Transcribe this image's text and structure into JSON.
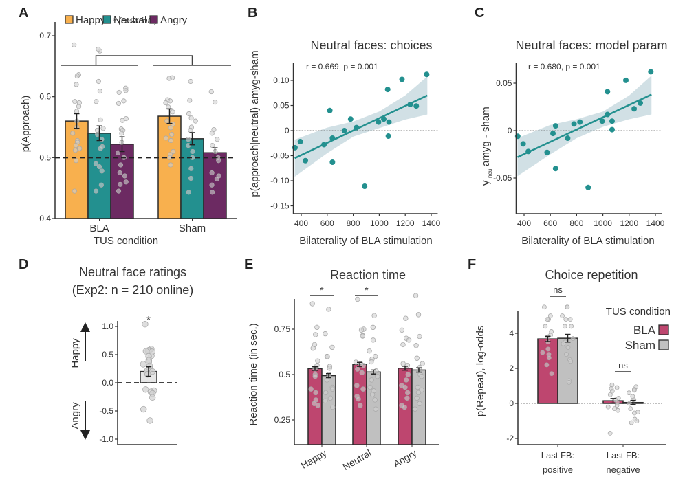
{
  "colors": {
    "happy": "#F8B04E",
    "neutral": "#23908F",
    "angry": "#6C2A62",
    "bla": "#BE466F",
    "sham": "#C0C0C0",
    "scatter": "#23908F",
    "ci_band": "#C9DBE0",
    "point_gray": "#BDBDBD"
  },
  "chart_data": [
    {
      "panel": "A",
      "type": "bar",
      "title": "",
      "xlabel": "TUS condition",
      "ylabel": "p(Approach)",
      "ylim": [
        0.4,
        0.72
      ],
      "yticks": [
        "0.4",
        "0.5",
        "0.6",
        "0.7"
      ],
      "categories": [
        "BLA",
        "Sham"
      ],
      "legend": [
        "Happy",
        "Neutral",
        "Angry"
      ],
      "legend_position": "top",
      "series": [
        {
          "name": "Happy",
          "values": [
            0.56,
            0.568
          ],
          "sem": [
            0.012,
            0.012
          ]
        },
        {
          "name": "Neutral",
          "values": [
            0.54,
            0.531
          ],
          "sem": [
            0.012,
            0.01
          ]
        },
        {
          "name": "Angry",
          "values": [
            0.522,
            0.508
          ],
          "sem": [
            0.012,
            0.008
          ]
        }
      ],
      "reference_line": 0.5,
      "annotation": "* (covariate)",
      "points": {
        "BLA": {
          "Happy": [
            0.685,
            0.636,
            0.634,
            0.62,
            0.592,
            0.59,
            0.584,
            0.576,
            0.56,
            0.55,
            0.54,
            0.528,
            0.525,
            0.52,
            0.515,
            0.512,
            0.495,
            0.445
          ],
          "Neutral": [
            0.675,
            0.678,
            0.625,
            0.609,
            0.592,
            0.562,
            0.548,
            0.545,
            0.538,
            0.53,
            0.518,
            0.515,
            0.49,
            0.485,
            0.478,
            0.455,
            0.445
          ],
          "Angry": [
            0.614,
            0.61,
            0.607,
            0.593,
            0.589,
            0.564,
            0.561,
            0.547,
            0.545,
            0.54,
            0.525,
            0.508,
            0.5,
            0.488,
            0.475,
            0.47,
            0.46,
            0.456,
            0.445
          ]
        },
        "Sham": {
          "Happy": [
            0.631,
            0.63,
            0.595,
            0.593,
            0.59,
            0.583,
            0.575,
            0.56,
            0.555,
            0.549,
            0.538,
            0.532,
            0.528,
            0.51,
            0.505,
            0.5,
            0.488
          ],
          "Neutral": [
            0.625,
            0.594,
            0.572,
            0.565,
            0.56,
            0.55,
            0.545,
            0.53,
            0.52,
            0.51,
            0.5,
            0.482,
            0.466,
            0.443
          ],
          "Angry": [
            0.608,
            0.591,
            0.546,
            0.54,
            0.53,
            0.52,
            0.51,
            0.5,
            0.495,
            0.475,
            0.47,
            0.465,
            0.455,
            0.443
          ]
        }
      }
    },
    {
      "panel": "B",
      "type": "scatter",
      "title": "Neutral faces: choices",
      "annotation": "r = 0.669, p = 0.001",
      "xlabel": "Bilaterality of BLA stimulation",
      "ylabel": "p(approach|neutral) amyg-sham",
      "xlim": [
        350,
        1450
      ],
      "ylim": [
        -0.165,
        0.125
      ],
      "xticks": [
        400,
        600,
        800,
        1000,
        1200,
        1400
      ],
      "yticks": [
        -0.15,
        -0.1,
        -0.05,
        0,
        0.05,
        0.1
      ],
      "ytick_labels": [
        "-0.15",
        "-0.10",
        "-0.05",
        "0",
        "0.05",
        "0.10"
      ],
      "points": [
        [
          352,
          -0.034
        ],
        [
          393,
          -0.022
        ],
        [
          432,
          -0.06
        ],
        [
          575,
          -0.028
        ],
        [
          620,
          0.04
        ],
        [
          640,
          -0.015
        ],
        [
          640,
          -0.063
        ],
        [
          732,
          0.0
        ],
        [
          780,
          0.023
        ],
        [
          825,
          0.006
        ],
        [
          888,
          -0.111
        ],
        [
          995,
          0.017
        ],
        [
          1035,
          0.023
        ],
        [
          1065,
          0.082
        ],
        [
          1075,
          0.017
        ],
        [
          1070,
          -0.011
        ],
        [
          1175,
          0.102
        ],
        [
          1238,
          0.052
        ],
        [
          1285,
          0.049
        ],
        [
          1365,
          0.112
        ]
      ],
      "fit": {
        "x": [
          350,
          1370
        ],
        "y": [
          -0.055,
          0.07
        ]
      },
      "ci_band": {
        "x": [
          350,
          600,
          800,
          1000,
          1200,
          1370
        ],
        "lower": [
          -0.092,
          -0.045,
          -0.012,
          0.005,
          0.022,
          0.032
        ],
        "upper": [
          -0.018,
          0.006,
          0.018,
          0.038,
          0.07,
          0.108
        ]
      },
      "reference_line": 0
    },
    {
      "panel": "C",
      "type": "scatter",
      "title": "Neutral faces: model param",
      "annotation": "r = 0.680, p = 0.001",
      "xlabel": "Bilaterality of BLA stimulation",
      "ylabel": "γ neu, amyg - sham",
      "ylabel_parts": {
        "symbol": "γ",
        "subscript": "neu,",
        "rest": " amyg - sham"
      },
      "xlim": [
        350,
        1450
      ],
      "ylim": [
        -0.085,
        0.068
      ],
      "xticks": [
        400,
        600,
        800,
        1000,
        1200,
        1400
      ],
      "yticks": [
        -0.05,
        0,
        0.05
      ],
      "ytick_labels": [
        "-0.05",
        "0",
        "0.05"
      ],
      "points": [
        [
          352,
          -0.006
        ],
        [
          393,
          -0.014
        ],
        [
          432,
          -0.022
        ],
        [
          575,
          -0.023
        ],
        [
          620,
          -0.003
        ],
        [
          640,
          0.005
        ],
        [
          640,
          -0.04
        ],
        [
          732,
          -0.008
        ],
        [
          780,
          0.007
        ],
        [
          825,
          0.009
        ],
        [
          888,
          -0.06
        ],
        [
          995,
          0.01
        ],
        [
          1035,
          0.017
        ],
        [
          1035,
          0.041
        ],
        [
          1070,
          0.01
        ],
        [
          1070,
          0.001
        ],
        [
          1175,
          0.053
        ],
        [
          1238,
          0.023
        ],
        [
          1285,
          0.029
        ],
        [
          1365,
          0.062
        ]
      ],
      "fit": {
        "x": [
          350,
          1370
        ],
        "y": [
          -0.028,
          0.038
        ]
      },
      "ci_band": {
        "x": [
          350,
          600,
          800,
          1000,
          1200,
          1370
        ],
        "lower": [
          -0.048,
          -0.025,
          -0.008,
          0.004,
          0.012,
          0.017
        ],
        "upper": [
          -0.008,
          0.006,
          0.012,
          0.02,
          0.037,
          0.058
        ]
      },
      "reference_line": 0
    },
    {
      "panel": "D",
      "type": "bar",
      "title": "Neutral face ratings",
      "subtitle": "(Exp2: n = 210 online)",
      "ylabel_top": "Happy",
      "ylabel_bottom": "Angry",
      "ylim": [
        -1.08,
        1.1
      ],
      "yticks": [
        -1.0,
        -0.5,
        0.0,
        0.5,
        1.0
      ],
      "ytick_labels": [
        "-1.0",
        "-0.5",
        "0.0",
        "0.5",
        "1.0"
      ],
      "values": [
        0.2
      ],
      "sem": [
        0.085
      ],
      "significance": "*",
      "reference_line": 0.0,
      "points": [
        1.04,
        0.6,
        0.58,
        0.57,
        0.56,
        0.55,
        0.48,
        0.47,
        0.4,
        0.37,
        0.33,
        0.3,
        0.25,
        0.22,
        0.2,
        0.18,
        0.15,
        -0.12,
        -0.14,
        -0.16,
        -0.19,
        -0.26,
        -0.47,
        -0.67
      ]
    },
    {
      "panel": "E",
      "type": "bar",
      "title": "Reaction time",
      "ylabel": "Reaction time (in sec.)",
      "ylim": [
        0.11,
        0.93
      ],
      "yticks": [
        0.25,
        0.5,
        0.75
      ],
      "ytick_labels": [
        "0.25",
        "0.5",
        "0.75"
      ],
      "categories": [
        "Happy",
        "Neutral",
        "Angry"
      ],
      "series": [
        {
          "name": "BLA",
          "values": [
            0.533,
            0.556,
            0.535
          ],
          "sem": [
            0.01,
            0.011,
            0.011
          ]
        },
        {
          "name": "Sham",
          "values": [
            0.494,
            0.514,
            0.525
          ],
          "sem": [
            0.011,
            0.011,
            0.012
          ]
        }
      ],
      "significance": [
        "*",
        "*",
        ""
      ],
      "points": {
        "Happy": {
          "BLA": [
            0.89,
            0.76,
            0.72,
            0.665,
            0.645,
            0.575,
            0.55,
            0.53,
            0.5,
            0.49,
            0.42,
            0.4,
            0.36,
            0.34,
            0.33
          ],
          "Sham": [
            0.86,
            0.725,
            0.65,
            0.6,
            0.598,
            0.545,
            0.535,
            0.5,
            0.47,
            0.43,
            0.42,
            0.4,
            0.37,
            0.355,
            0.32
          ]
        },
        "Neutral": {
          "BLA": [
            0.915,
            0.75,
            0.745,
            0.715,
            0.712,
            0.568,
            0.56,
            0.55,
            0.53,
            0.51,
            0.44,
            0.42,
            0.38,
            0.365,
            0.33
          ],
          "Sham": [
            0.825,
            0.76,
            0.69,
            0.63,
            0.6,
            0.585,
            0.57,
            0.52,
            0.49,
            0.47,
            0.43,
            0.41,
            0.39,
            0.36,
            0.31
          ]
        },
        "Angry": {
          "BLA": [
            0.81,
            0.745,
            0.7,
            0.69,
            0.665,
            0.56,
            0.55,
            0.5,
            0.47,
            0.44,
            0.43,
            0.4,
            0.37,
            0.33,
            0.32
          ],
          "Sham": [
            0.935,
            0.83,
            0.71,
            0.66,
            0.59,
            0.56,
            0.54,
            0.5,
            0.49,
            0.43,
            0.415,
            0.4,
            0.37,
            0.34,
            0.31
          ]
        }
      }
    },
    {
      "panel": "F",
      "type": "bar",
      "title": "Choice repetition",
      "ylabel": "p(Repeat), log-odds",
      "ylim": [
        -2.4,
        5.3
      ],
      "yticks": [
        -2,
        0,
        2,
        4
      ],
      "ytick_labels": [
        "-2",
        "0",
        "2",
        "4"
      ],
      "categories": [
        "Last FB:\npositive",
        "Last FB:\nnegative"
      ],
      "category_lines": [
        [
          "Last FB:",
          "positive"
        ],
        [
          "Last FB:",
          "negative"
        ]
      ],
      "legend_title": "TUS condition",
      "legend": [
        "BLA",
        "Sham"
      ],
      "legend_position": "top-right",
      "series": [
        {
          "name": "BLA",
          "values": [
            3.68,
            0.15
          ],
          "sem": [
            0.15,
            0.13
          ]
        },
        {
          "name": "Sham",
          "values": [
            3.72,
            0.05
          ],
          "sem": [
            0.22,
            0.12
          ]
        }
      ],
      "significance": [
        "ns",
        "ns"
      ],
      "reference_line": 0,
      "points": {
        "positive": {
          "BLA": [
            5.5,
            5.0,
            4.8,
            4.8,
            4.4,
            4.1,
            3.9,
            3.8,
            3.5,
            3.1,
            2.9,
            2.8,
            2.6,
            2.2,
            1.7
          ],
          "Sham": [
            5.5,
            5.5,
            5.0,
            4.8,
            4.8,
            4.4,
            4.4,
            3.7,
            3.5,
            3.4,
            3.2,
            2.8,
            2.5,
            2.4,
            1.3,
            1.2
          ]
        },
        "negative": {
          "BLA": [
            1.05,
            0.9,
            0.85,
            0.7,
            0.5,
            0.3,
            0.2,
            0.05,
            -0.1,
            -0.2,
            -0.3,
            -0.4,
            -1.7
          ],
          "Sham": [
            0.95,
            0.8,
            0.75,
            0.6,
            0.4,
            0.2,
            0.0,
            -0.3,
            -0.5,
            -0.55,
            -0.9,
            -1.0,
            -1.1
          ]
        }
      }
    }
  ],
  "labels": {
    "panel_a": "A",
    "panel_b": "B",
    "panel_c": "C",
    "panel_d": "D",
    "panel_e": "E",
    "panel_f": "F"
  }
}
